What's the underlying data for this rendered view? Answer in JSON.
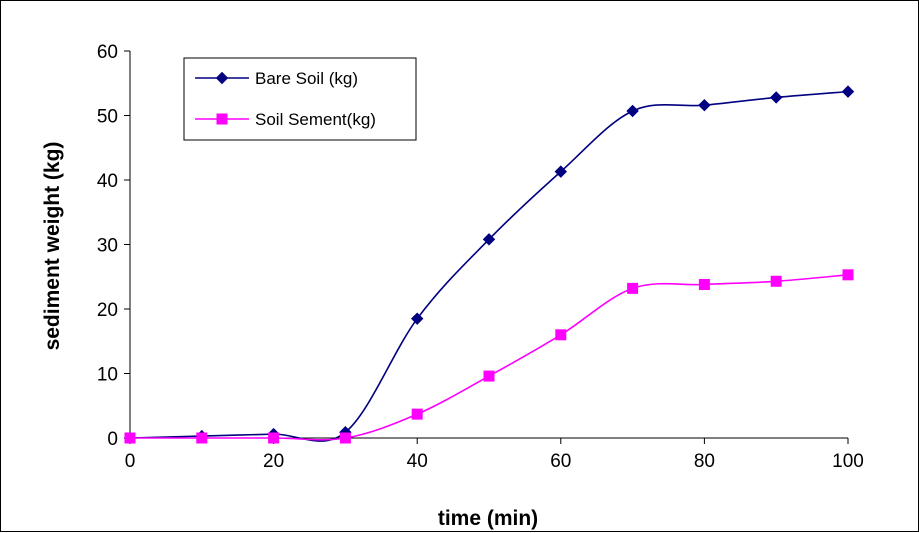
{
  "chart_data": {
    "type": "line",
    "xlabel": "time (min)",
    "ylabel": "sediment weight (kg)",
    "xlim": [
      0,
      100
    ],
    "ylim": [
      0,
      60
    ],
    "xticks": [
      "0",
      "20",
      "40",
      "60",
      "80",
      "100"
    ],
    "yticks": [
      "0",
      "10",
      "20",
      "30",
      "40",
      "50",
      "60"
    ],
    "grid": false,
    "legend_position": "top-left",
    "x": [
      0,
      10,
      20,
      30,
      40,
      50,
      60,
      70,
      80,
      90,
      100
    ],
    "series": [
      {
        "name": "Bare Soil (kg)",
        "values": [
          0,
          0.3,
          0.6,
          0.9,
          18.5,
          30.8,
          41.3,
          50.7,
          51.6,
          52.8,
          53.7
        ],
        "color": "#000080",
        "marker": "diamond"
      },
      {
        "name": "Soil Sement(kg)",
        "values": [
          0,
          0,
          0,
          0,
          3.7,
          9.6,
          16.0,
          23.2,
          23.8,
          24.3,
          25.3
        ],
        "color": "#FF00FF",
        "marker": "square"
      }
    ]
  }
}
